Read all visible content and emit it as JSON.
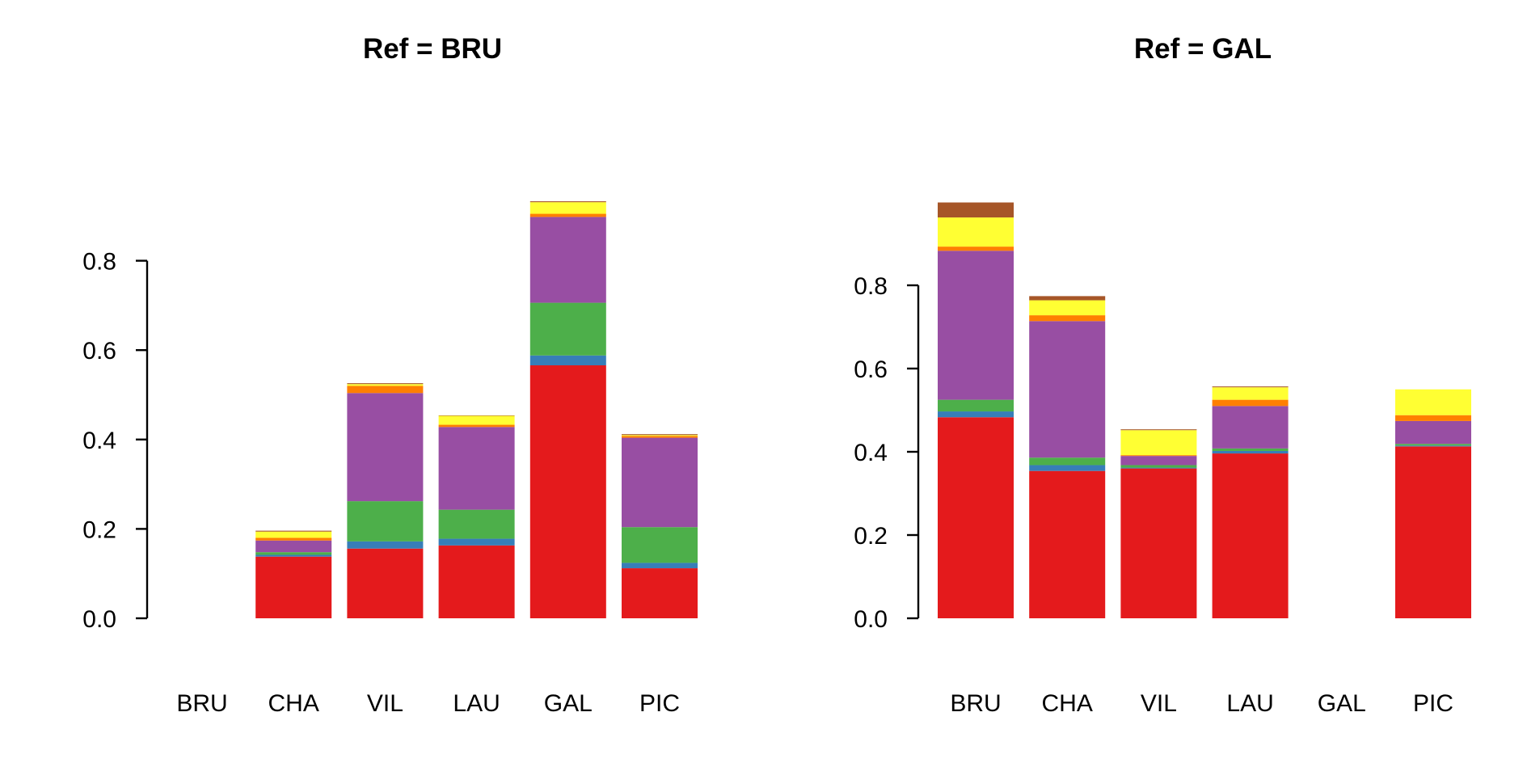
{
  "chart_data": [
    {
      "type": "bar",
      "stacked": true,
      "title": "Ref = BRU",
      "categories": [
        "BRU",
        "CHA",
        "VIL",
        "LAU",
        "GAL",
        "PIC"
      ],
      "ylim": [
        0,
        0.95
      ],
      "yticks": [
        0.0,
        0.2,
        0.4,
        0.6,
        0.8
      ],
      "ytick_labels": [
        "0.0",
        "0.2",
        "0.4",
        "0.6",
        "0.8"
      ],
      "grid": false,
      "series": [
        {
          "color": "#E41A1C",
          "values": [
            0,
            0.138,
            0.156,
            0.163,
            0.566,
            0.112
          ]
        },
        {
          "color": "#377EB8",
          "values": [
            0,
            0.004,
            0.016,
            0.015,
            0.022,
            0.012
          ]
        },
        {
          "color": "#4DAF4A",
          "values": [
            0,
            0.006,
            0.09,
            0.065,
            0.118,
            0.08
          ]
        },
        {
          "color": "#984EA3",
          "values": [
            0,
            0.026,
            0.242,
            0.185,
            0.192,
            0.2
          ]
        },
        {
          "color": "#FF7F00",
          "values": [
            0,
            0.006,
            0.016,
            0.005,
            0.007,
            0.004
          ]
        },
        {
          "color": "#FFFF33",
          "values": [
            0,
            0.014,
            0.004,
            0.02,
            0.026,
            0.002
          ]
        },
        {
          "color": "#A65628",
          "values": [
            0,
            0.002,
            0.002,
            0.001,
            0.002,
            0.002
          ]
        }
      ]
    },
    {
      "type": "bar",
      "stacked": true,
      "title": "Ref = GAL",
      "categories": [
        "BRU",
        "CHA",
        "VIL",
        "LAU",
        "GAL",
        "PIC"
      ],
      "ylim": [
        0,
        1.0
      ],
      "yticks": [
        0.0,
        0.2,
        0.4,
        0.6,
        0.8
      ],
      "ytick_labels": [
        "0.0",
        "0.2",
        "0.4",
        "0.6",
        "0.8"
      ],
      "grid": false,
      "series": [
        {
          "color": "#E41A1C",
          "values": [
            0.483,
            0.354,
            0.36,
            0.396,
            0,
            0.413
          ]
        },
        {
          "color": "#377EB8",
          "values": [
            0.014,
            0.014,
            0.002,
            0.006,
            0,
            0.002
          ]
        },
        {
          "color": "#4DAF4A",
          "values": [
            0.028,
            0.018,
            0.006,
            0.006,
            0,
            0.004
          ]
        },
        {
          "color": "#984EA3",
          "values": [
            0.358,
            0.328,
            0.022,
            0.102,
            0,
            0.055
          ]
        },
        {
          "color": "#FF7F00",
          "values": [
            0.01,
            0.014,
            0.002,
            0.015,
            0,
            0.014
          ]
        },
        {
          "color": "#FFFF33",
          "values": [
            0.07,
            0.036,
            0.06,
            0.03,
            0,
            0.062
          ]
        },
        {
          "color": "#A65628",
          "values": [
            0.036,
            0.01,
            0.002,
            0.002,
            0,
            0.0
          ]
        }
      ]
    }
  ]
}
